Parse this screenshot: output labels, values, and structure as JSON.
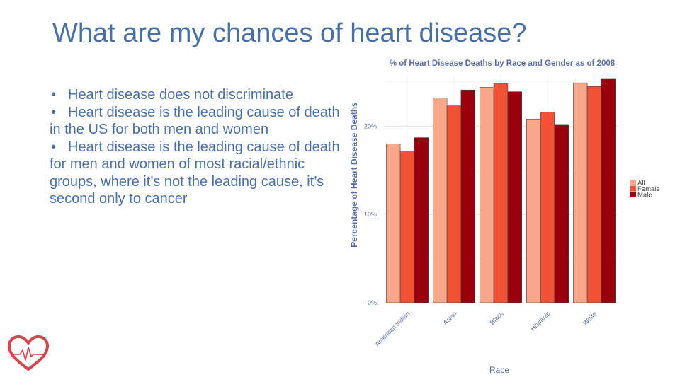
{
  "slide": {
    "title": "What are my chances of heart disease?",
    "bullets": [
      "Heart disease does not discriminate",
      "Heart disease is the leading cause of death in the US for both men and women",
      "Heart disease is the leading cause of death for men and women of most racial/ethnic groups, where it’s not the leading cause, it’s second only to cancer"
    ],
    "bullet_char": "•",
    "logo_icon": "heart-pulse-icon",
    "colors": {
      "title": "#4a70a8",
      "body": "#4a70a8",
      "logo": "#d9434b"
    }
  },
  "chart_data": {
    "type": "bar",
    "title": "% of Heart Disease Deaths by Race and Gender as of 2008",
    "xlabel": "Race",
    "ylabel": "Percentage of Heart Disease Deaths",
    "categories": [
      "American Indian",
      "Asian",
      "Black",
      "Hispanic",
      "White"
    ],
    "series": [
      {
        "name": "All",
        "color": "#f9a78b",
        "values": [
          18.0,
          23.2,
          24.4,
          20.8,
          24.9
        ]
      },
      {
        "name": "Female",
        "color": "#ef5234",
        "values": [
          17.1,
          22.3,
          24.8,
          21.6,
          24.5
        ]
      },
      {
        "name": "Male",
        "color": "#98000d",
        "values": [
          18.7,
          24.1,
          23.9,
          20.2,
          25.4
        ]
      }
    ],
    "ylim": [
      0,
      25.8
    ],
    "yticks": [
      0,
      10,
      20
    ],
    "ytick_labels": [
      "0%",
      "10%",
      "20%"
    ],
    "grid": true,
    "legend_position": "right"
  }
}
